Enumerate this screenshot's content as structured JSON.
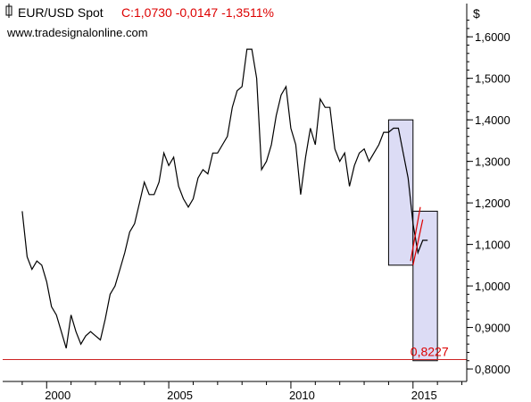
{
  "header": {
    "symbol": "EUR/USD Spot",
    "quote": "C:1,0730 -0,0147 -1,3511%",
    "source": "www.tradesignalonline.com"
  },
  "colors": {
    "price": "#000000",
    "accent_red": "#dd0000",
    "support_line": "#cc2222",
    "box_fill": "#dcdcf5",
    "box_stroke": "#000000"
  },
  "chart_data": {
    "type": "line",
    "ylabel": "$",
    "y_ticks": [
      "1,6000",
      "1,5000",
      "1,4000",
      "1,3000",
      "1,2000",
      "1,1000",
      "1,0000",
      "0,9000",
      "0,8000"
    ],
    "y_tick_values": [
      1.6,
      1.5,
      1.4,
      1.3,
      1.2,
      1.1,
      1.0,
      0.9,
      0.8
    ],
    "x_ticks": [
      "2000",
      "2005",
      "2010",
      "2015"
    ],
    "x_tick_values": [
      2000,
      2005,
      2010,
      2015
    ],
    "xlim": [
      1998.2,
      2017.2
    ],
    "ylim": [
      0.77,
      1.68
    ],
    "grid": false,
    "series": [
      {
        "x": [
          1999.0,
          1999.2,
          1999.4,
          1999.6,
          1999.8,
          2000.0,
          2000.2,
          2000.4,
          2000.6,
          2000.8,
          2001.0,
          2001.2,
          2001.4,
          2001.6,
          2001.8,
          2002.0,
          2002.2,
          2002.4,
          2002.6,
          2002.8,
          2003.0,
          2003.2,
          2003.4,
          2003.6,
          2003.8,
          2004.0,
          2004.2,
          2004.4,
          2004.6,
          2004.8,
          2005.0,
          2005.2,
          2005.4,
          2005.6,
          2005.8,
          2006.0,
          2006.2,
          2006.4,
          2006.6,
          2006.8,
          2007.0,
          2007.2,
          2007.4,
          2007.6,
          2007.8,
          2008.0,
          2008.2,
          2008.4,
          2008.6,
          2008.8,
          2009.0,
          2009.2,
          2009.4,
          2009.6,
          2009.8,
          2010.0,
          2010.2,
          2010.4,
          2010.6,
          2010.8,
          2011.0,
          2011.2,
          2011.4,
          2011.6,
          2011.8,
          2012.0,
          2012.2,
          2012.4,
          2012.6,
          2012.8,
          2013.0,
          2013.2,
          2013.4,
          2013.6,
          2013.8,
          2014.0,
          2014.2,
          2014.4,
          2014.6,
          2014.8,
          2015.0,
          2015.2,
          2015.4,
          2015.6
        ],
        "y": [
          1.18,
          1.07,
          1.04,
          1.06,
          1.05,
          1.01,
          0.95,
          0.93,
          0.89,
          0.85,
          0.93,
          0.89,
          0.86,
          0.88,
          0.89,
          0.88,
          0.87,
          0.92,
          0.98,
          1.0,
          1.04,
          1.08,
          1.13,
          1.15,
          1.2,
          1.25,
          1.22,
          1.22,
          1.25,
          1.32,
          1.29,
          1.31,
          1.24,
          1.21,
          1.19,
          1.21,
          1.26,
          1.28,
          1.27,
          1.32,
          1.32,
          1.34,
          1.36,
          1.43,
          1.47,
          1.48,
          1.57,
          1.57,
          1.5,
          1.28,
          1.3,
          1.34,
          1.41,
          1.46,
          1.48,
          1.38,
          1.34,
          1.22,
          1.31,
          1.38,
          1.34,
          1.45,
          1.43,
          1.43,
          1.33,
          1.3,
          1.32,
          1.24,
          1.29,
          1.32,
          1.33,
          1.3,
          1.32,
          1.34,
          1.37,
          1.37,
          1.38,
          1.38,
          1.32,
          1.26,
          1.15,
          1.08,
          1.11,
          1.11
        ],
        "annotations": [
          "0,8227"
        ]
      }
    ],
    "support_level": 0.8227,
    "boxes": [
      {
        "x0": 2014.0,
        "x1": 2015.0,
        "y_top": 1.4,
        "y_bottom": 1.05
      },
      {
        "x0": 2015.0,
        "x1": 2016.0,
        "y_top": 1.18,
        "y_bottom": 0.82
      }
    ],
    "channel": [
      {
        "x0": 2014.9,
        "y0": 1.06,
        "x1": 2015.3,
        "y1": 1.19
      },
      {
        "x0": 2015.0,
        "y0": 1.05,
        "x1": 2015.4,
        "y1": 1.16
      }
    ]
  }
}
